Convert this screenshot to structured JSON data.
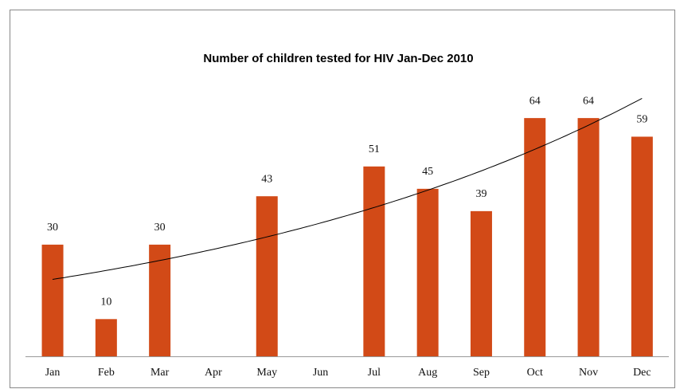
{
  "chart_data": {
    "type": "bar",
    "title": "Number of children tested for HIV Jan-Dec 2010",
    "categories": [
      "Jan",
      "Feb",
      "Mar",
      "Apr",
      "May",
      "Jun",
      "Jul",
      "Aug",
      "Sep",
      "Oct",
      "Nov",
      "Dec"
    ],
    "values": [
      30,
      10,
      30,
      null,
      43,
      null,
      51,
      45,
      39,
      64,
      64,
      59
    ],
    "color": "#d24a17",
    "trendline": "exponential"
  }
}
